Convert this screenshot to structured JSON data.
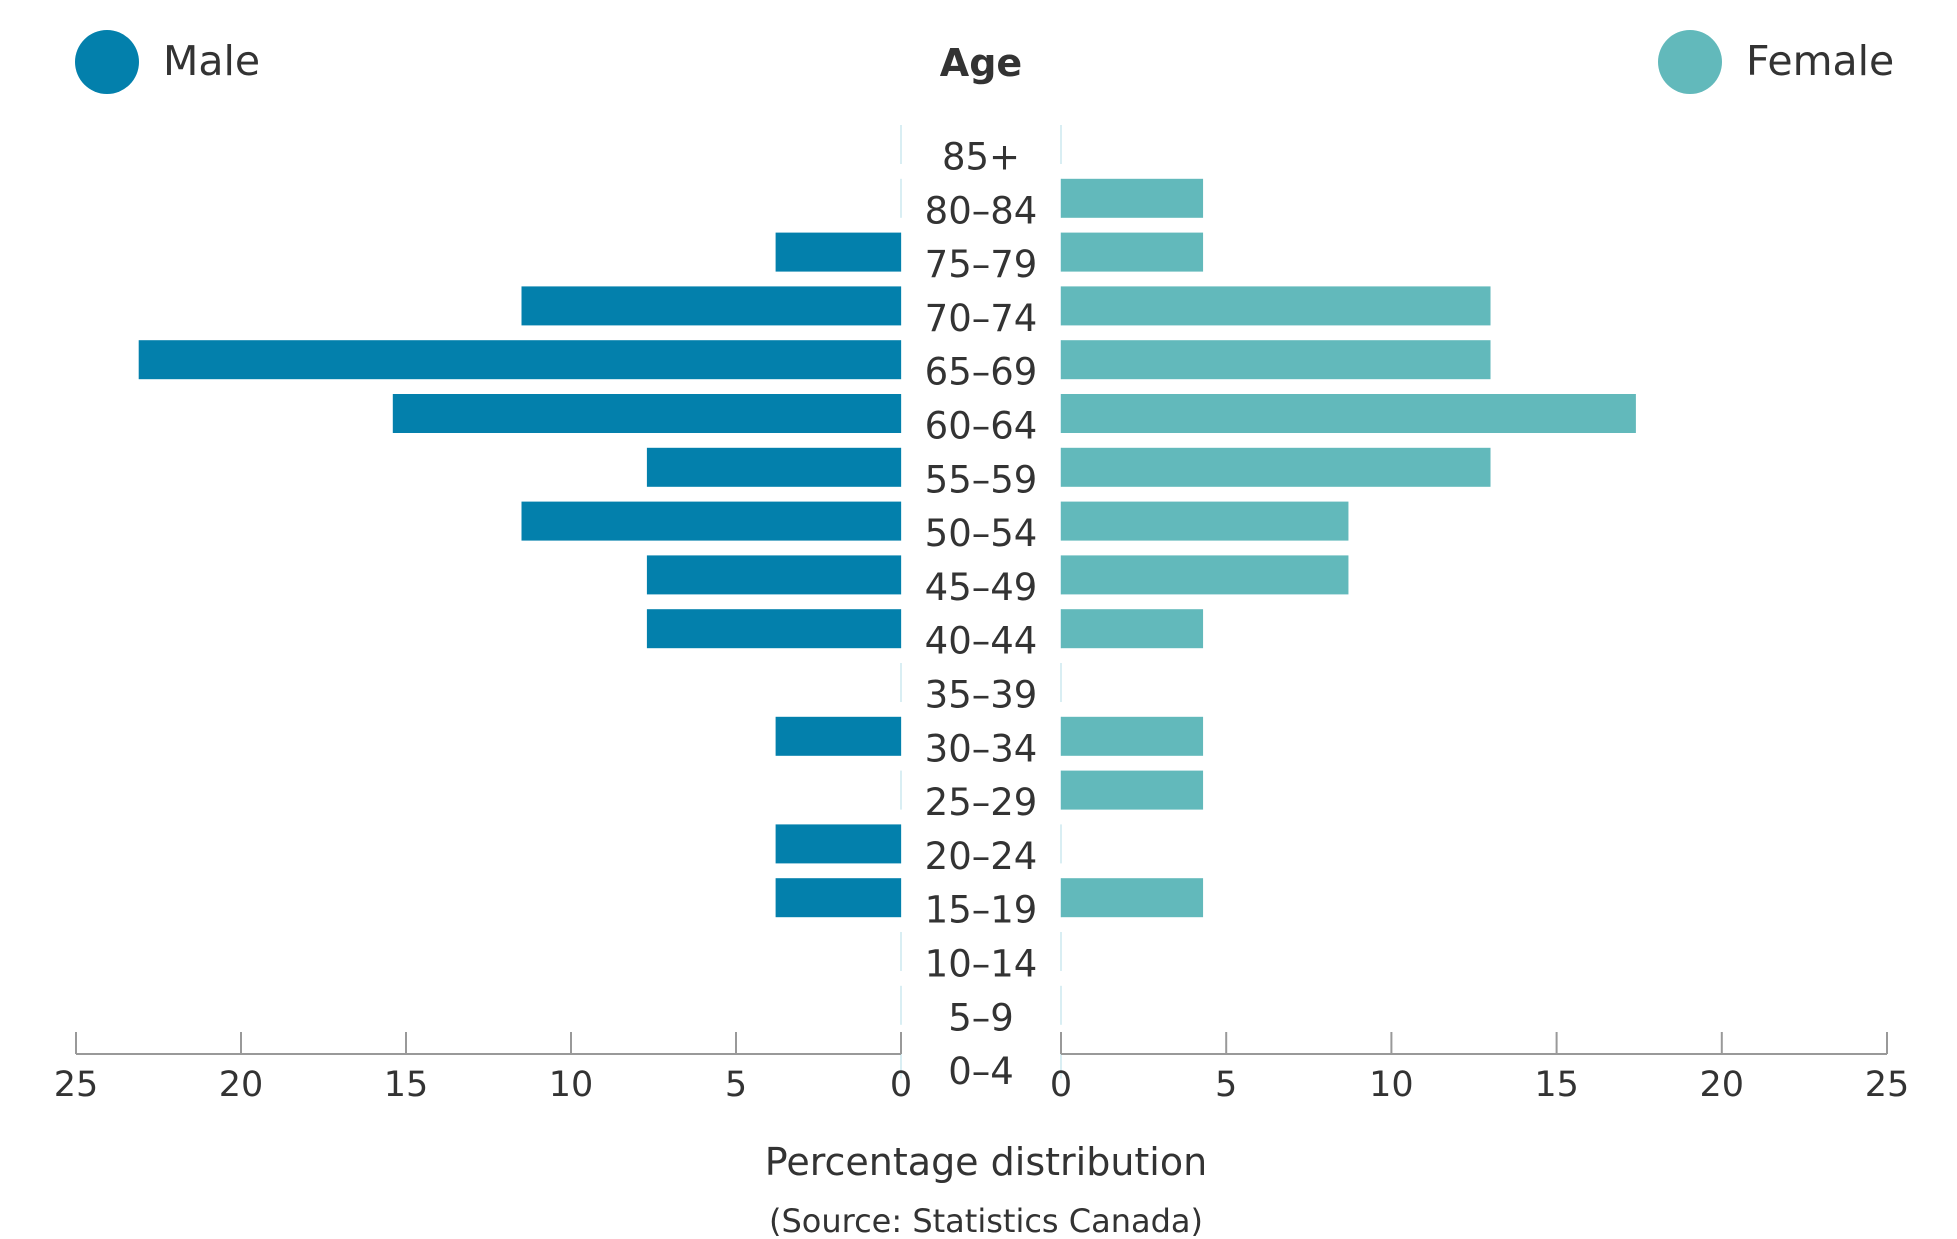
{
  "chart_data": {
    "type": "bar",
    "orientation": "horizontal",
    "subtype": "population-pyramid",
    "age_axis_label": "Age",
    "xlabel": "Percentage distribution",
    "source": "(Source: Statistics Canada)",
    "xlim": [
      0,
      25
    ],
    "x_ticks": [
      "25",
      "20",
      "15",
      "10",
      "5",
      "0",
      "0",
      "5",
      "10",
      "15",
      "20",
      "25"
    ],
    "categories": [
      "85+",
      "80–84",
      "75–79",
      "70–74",
      "65–69",
      "60–64",
      "55–59",
      "50–54",
      "45–49",
      "40–44",
      "35–39",
      "30–34",
      "25–29",
      "20–24",
      "15–19",
      "10–14",
      "5–9",
      "0–4"
    ],
    "series": [
      {
        "name": "Male",
        "color": "#0380ac",
        "side": "left",
        "values": [
          0,
          0,
          3.8,
          11.5,
          23.1,
          15.4,
          7.7,
          11.5,
          7.7,
          7.7,
          0,
          3.8,
          0,
          3.8,
          3.8,
          0,
          0,
          0
        ]
      },
      {
        "name": "Female",
        "color": "#62b9bb",
        "side": "right",
        "values": [
          0,
          4.3,
          4.3,
          13.0,
          13.0,
          17.4,
          13.0,
          8.7,
          8.7,
          4.3,
          0,
          4.3,
          4.3,
          0,
          4.3,
          0,
          0,
          0
        ]
      }
    ],
    "legend": {
      "placement": "top",
      "male_position": "top-left",
      "female_position": "top-right"
    },
    "grid": false
  }
}
